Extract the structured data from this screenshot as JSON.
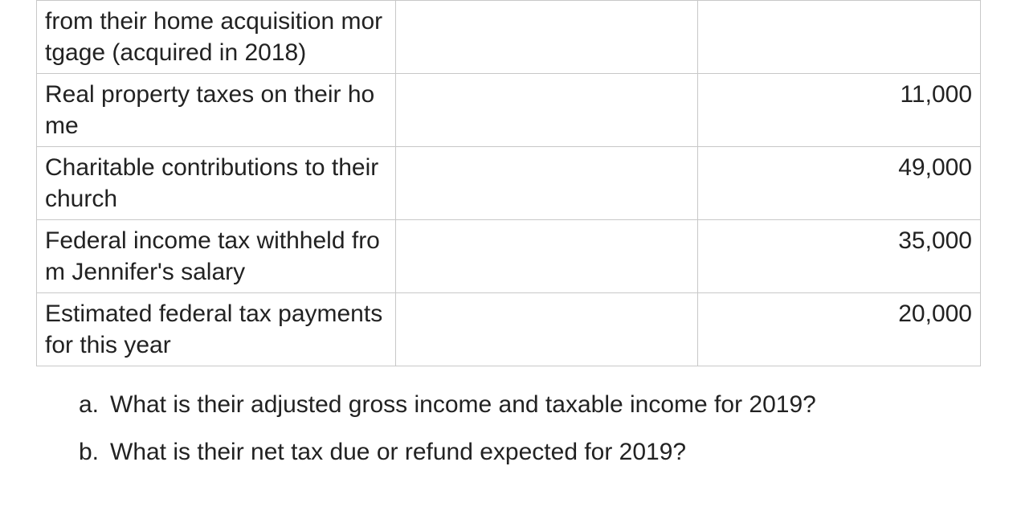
{
  "table": {
    "border_color": "#c8c8c8",
    "text_color": "#222222",
    "font_size": 30,
    "rows": [
      {
        "description": "from their home acquisition mortgage (acquired in 2018)",
        "middle": "",
        "value": ""
      },
      {
        "description": "Real property taxes on their home",
        "middle": "",
        "value": "11,000"
      },
      {
        "description": "Charitable contributions to their church",
        "middle": "",
        "value": "49,000"
      },
      {
        "description": "Federal income tax withheld from Jennifer's salary",
        "middle": "",
        "value": "35,000"
      },
      {
        "description": "Estimated federal tax payments for this year",
        "middle": "",
        "value": "20,000"
      }
    ]
  },
  "questions": [
    {
      "letter": "a.",
      "text": "What is their adjusted gross income and taxable income for 2019?"
    },
    {
      "letter": "b.",
      "text": "What is their net tax due or refund expected for 2019?"
    }
  ]
}
